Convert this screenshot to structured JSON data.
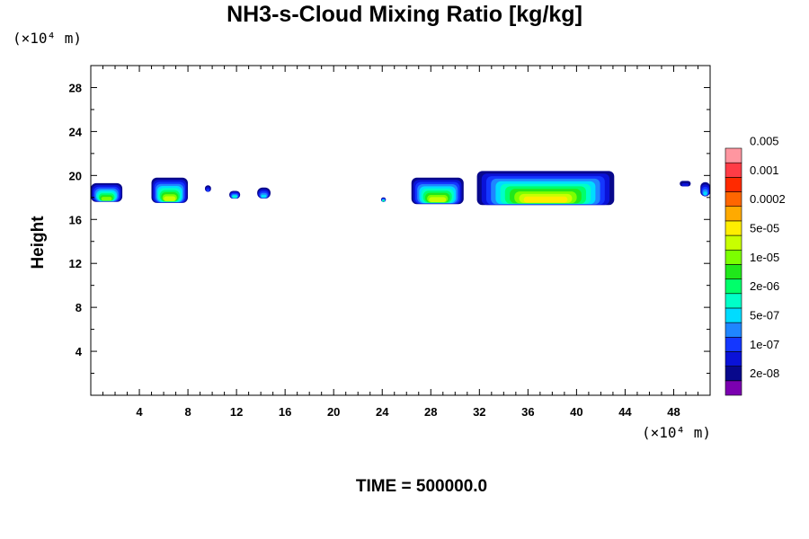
{
  "chart_data": {
    "type": "heatmap",
    "title": "NH3-s-Cloud Mixing Ratio [kg/kg]",
    "ylabel": "Height",
    "y_unit": "(×10⁴ m)",
    "x_unit": "(×10⁴ m)",
    "footer": "TIME = 500000.0",
    "xlim": [
      0,
      51
    ],
    "ylim": [
      0,
      30
    ],
    "x_ticks": [
      "4",
      "8",
      "12",
      "16",
      "20",
      "24",
      "28",
      "32",
      "36",
      "40",
      "44",
      "48"
    ],
    "x_tick_values": [
      4,
      8,
      12,
      16,
      20,
      24,
      28,
      32,
      36,
      40,
      44,
      48
    ],
    "y_ticks": [
      "4",
      "8",
      "12",
      "16",
      "20",
      "24",
      "28"
    ],
    "y_tick_values": [
      4,
      8,
      12,
      16,
      20,
      24,
      28
    ],
    "colorbar": {
      "colors": [
        "#7b00b0",
        "#08088c",
        "#0a12d8",
        "#1437ff",
        "#1f86ff",
        "#00dcff",
        "#00ffc8",
        "#00ff6a",
        "#20e81a",
        "#7cff00",
        "#c8ff00",
        "#ffee00",
        "#ffaa00",
        "#ff6600",
        "#ff2a00",
        "#ff3c46",
        "#ff96a0"
      ],
      "labels": [
        "2e-08",
        "1e-07",
        "5e-07",
        "2e-06",
        "1e-05",
        "5e-05",
        "0.0002",
        "0.001",
        "0.005"
      ]
    },
    "cloud_cells": [
      {
        "x": [
          0,
          2.6
        ],
        "ytop": 19.3,
        "ybottom": 17.6,
        "peak_level": 9
      },
      {
        "x": [
          5.0,
          8.0
        ],
        "ytop": 19.8,
        "ybottom": 17.5,
        "peak_level": 10
      },
      {
        "x": [
          9.4,
          9.9
        ],
        "ytop": 19.1,
        "ybottom": 18.5,
        "peak_level": 3
      },
      {
        "x": [
          11.4,
          12.3
        ],
        "ytop": 18.6,
        "ybottom": 17.9,
        "peak_level": 6
      },
      {
        "x": [
          13.7,
          14.8
        ],
        "ytop": 18.9,
        "ybottom": 17.9,
        "peak_level": 5
      },
      {
        "x": [
          23.9,
          24.3
        ],
        "ytop": 18.0,
        "ybottom": 17.6,
        "peak_level": 7
      },
      {
        "x": [
          26.4,
          30.7
        ],
        "ytop": 19.8,
        "ybottom": 17.4,
        "peak_level": 10
      },
      {
        "x": [
          31.8,
          43.1
        ],
        "ytop": 20.4,
        "ybottom": 17.3,
        "peak_level": 11
      },
      {
        "x": [
          48.5,
          49.4
        ],
        "ytop": 19.5,
        "ybottom": 19.0,
        "peak_level": 2
      },
      {
        "x": [
          50.2,
          51.0
        ],
        "ytop": 19.4,
        "ybottom": 18.1,
        "peak_level": 5
      }
    ]
  }
}
